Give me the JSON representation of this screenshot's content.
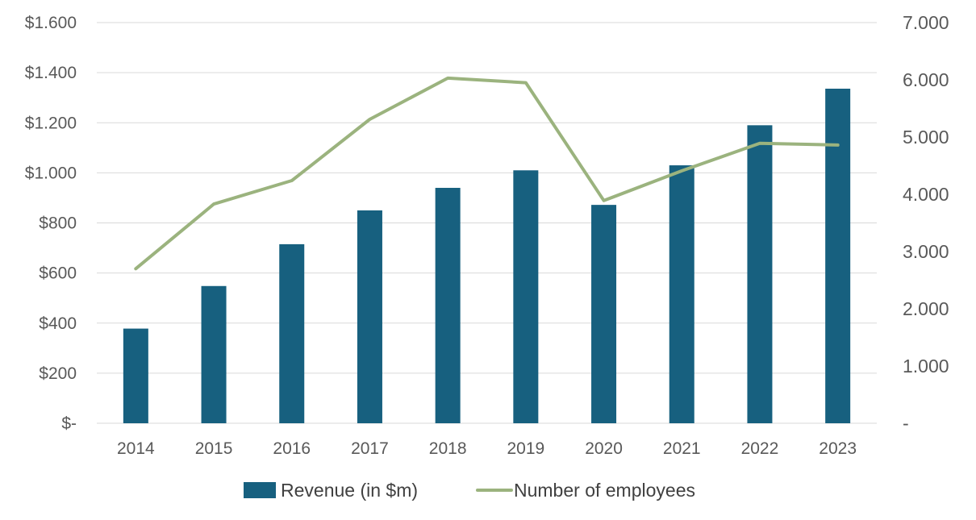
{
  "chart_data": {
    "type": "bar",
    "categories": [
      "2014",
      "2015",
      "2016",
      "2017",
      "2018",
      "2019",
      "2020",
      "2021",
      "2022",
      "2023"
    ],
    "series": [
      {
        "name": "Revenue (in $m)",
        "type": "bar",
        "axis": "left",
        "color": "#17607f",
        "values": [
          378,
          548,
          715,
          850,
          940,
          1010,
          872,
          1030,
          1190,
          1336
        ]
      },
      {
        "name": "Number of employees",
        "type": "line",
        "axis": "right",
        "color": "#9bb37e",
        "values": [
          2700,
          3830,
          4240,
          5310,
          6030,
          5950,
          3890,
          4410,
          4890,
          4860
        ]
      }
    ],
    "y_left": {
      "min": 0,
      "max": 1600,
      "ticks": [
        0,
        200,
        400,
        600,
        800,
        1000,
        1200,
        1400,
        1600
      ],
      "tick_labels": [
        "$-",
        "$200",
        "$400",
        "$600",
        "$800",
        "$1.000",
        "$1.200",
        "$1.400",
        "$1.600"
      ]
    },
    "y_right": {
      "min": 0,
      "max": 7000,
      "ticks": [
        0,
        1000,
        2000,
        3000,
        4000,
        5000,
        6000,
        7000
      ],
      "tick_labels": [
        "-",
        "1.000",
        "2.000",
        "3.000",
        "4.000",
        "5.000",
        "6.000",
        "7.000"
      ]
    },
    "grid": true,
    "gridline_color": "#d9d9d9",
    "legend_position": "bottom",
    "title": "",
    "xlabel": "",
    "ylabel": ""
  }
}
